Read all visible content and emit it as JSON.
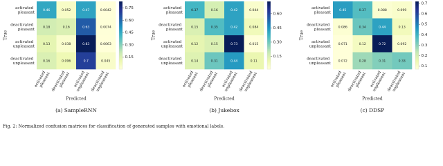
{
  "chart_data": [
    {
      "type": "heatmap",
      "title": "(a) SampleRNN",
      "ylabel": "True",
      "xlabel": "Predicted",
      "colormap": "YlGnBu",
      "categories": [
        "activated pleasant",
        "deactivated pleasant",
        "activated unpleasant",
        "deactivated unpleasant"
      ],
      "z": [
        [
          0.46,
          0.052,
          0.47,
          0.0042
        ],
        [
          0.18,
          0.16,
          0.63,
          0.0074
        ],
        [
          0.13,
          0.038,
          0.83,
          0.0063
        ],
        [
          0.16,
          0.096,
          0.7,
          0.045
        ]
      ],
      "vlim": [
        0.0042,
        0.83
      ],
      "cticks": [
        0.15,
        {
          "value": 0.3,
          "label": "0.30"
        },
        0.45,
        {
          "value": 0.6,
          "label": "0.60"
        },
        0.75
      ]
    },
    {
      "type": "heatmap",
      "title": "(b) Jukebox",
      "ylabel": "True",
      "xlabel": "Predicted",
      "colormap": "YlGnBu",
      "categories": [
        "activated pleasant",
        "deactivated pleasant",
        "activated unpleasant",
        "deactivated unpleasant"
      ],
      "z": [
        [
          0.37,
          0.16,
          0.42,
          0.044
        ],
        [
          0.15,
          0.35,
          0.42,
          0.084
        ],
        [
          0.12,
          0.15,
          0.73,
          0.015
        ],
        [
          0.14,
          0.31,
          0.44,
          0.11
        ]
      ],
      "vlim": [
        0.015,
        0.73
      ],
      "cticks": [
        0.15,
        {
          "value": 0.3,
          "label": "0.30"
        },
        0.45,
        {
          "value": 0.6,
          "label": "0.60"
        }
      ]
    },
    {
      "type": "heatmap",
      "title": "(c) DDSP",
      "ylabel": "True",
      "xlabel": "Predicted",
      "colormap": "YlGnBu",
      "categories": [
        "activated pleasant",
        "deactivated pleasant",
        "activated unpleasant",
        "deactivated unpleasant"
      ],
      "z": [
        [
          0.45,
          0.37,
          0.088,
          0.099
        ],
        [
          0.086,
          0.34,
          0.44,
          0.13
        ],
        [
          0.071,
          0.12,
          0.72,
          0.092
        ],
        [
          0.072,
          0.28,
          0.31,
          0.33
        ]
      ],
      "vlim": [
        0.071,
        0.72
      ],
      "cticks": [
        0.1,
        0.2,
        0.3,
        0.4,
        0.5,
        0.6,
        0.7
      ]
    }
  ],
  "caption": "Fig. 2: Normalized confusion matrices for classification of generated samples with emotional labels."
}
